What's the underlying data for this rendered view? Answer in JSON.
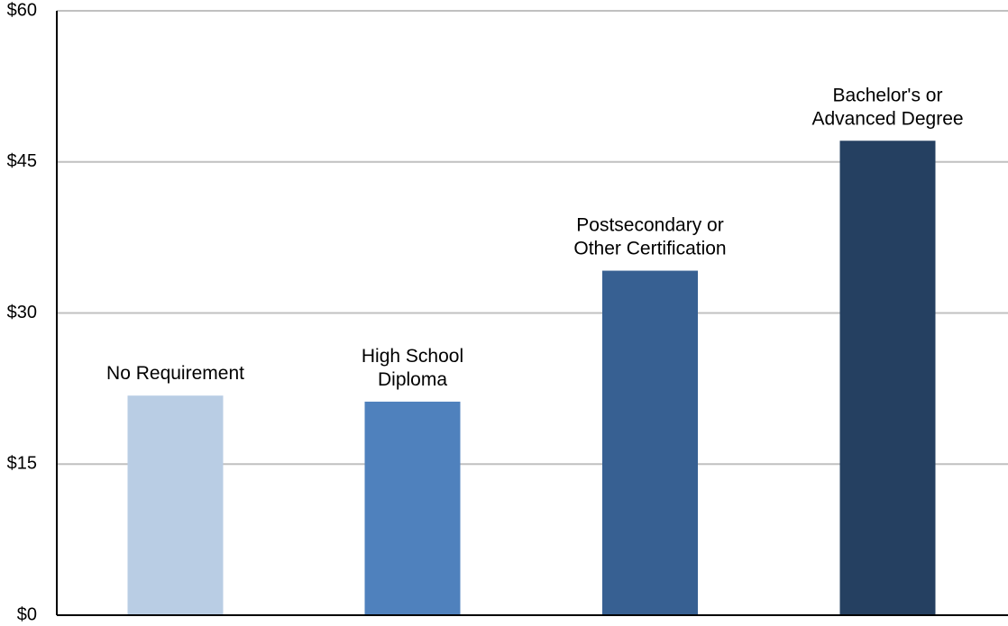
{
  "chart_data": {
    "type": "bar",
    "categories": [
      [
        "No Requirement"
      ],
      [
        "High School",
        "Diploma"
      ],
      [
        "Postsecondary or",
        "Other Certification"
      ],
      [
        "Bachelor's or",
        "Advanced Degree"
      ]
    ],
    "values": [
      21.8,
      21.2,
      34.2,
      47.1
    ],
    "colors": [
      "#b9cde4",
      "#4f81bd",
      "#376092",
      "#254061"
    ],
    "yticks": [
      "$0",
      "$15",
      "$30",
      "$45",
      "$60"
    ],
    "ytick_values": [
      0,
      15,
      30,
      45,
      60
    ],
    "ylim": [
      0,
      60
    ],
    "grid": true,
    "gridline_color": "#c0c0c0",
    "axis_color": "#000000",
    "title": "",
    "xlabel": "",
    "ylabel": ""
  }
}
